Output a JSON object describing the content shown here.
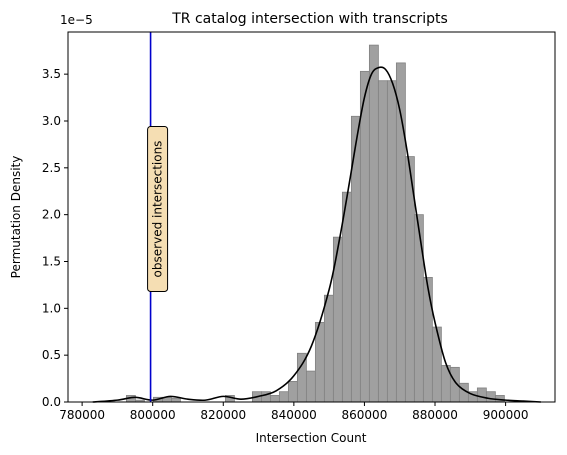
{
  "chart_data": {
    "type": "histogram",
    "title": "TR catalog intersection with transcripts",
    "xlabel": "Intersection Count",
    "ylabel": "Permutation Density",
    "y_offset_label": "1e−5",
    "xlim": [
      776000,
      914000
    ],
    "ylim": [
      0,
      3.95
    ],
    "x_ticks": [
      780000,
      800000,
      820000,
      840000,
      860000,
      880000,
      900000
    ],
    "x_tick_labels": [
      "780000",
      "800000",
      "820000",
      "840000",
      "860000",
      "880000",
      "900000"
    ],
    "y_ticks": [
      0.0,
      0.5,
      1.0,
      1.5,
      2.0,
      2.5,
      3.0,
      3.5
    ],
    "y_tick_labels": [
      "0.0",
      "0.5",
      "1.0",
      "1.5",
      "2.0",
      "2.5",
      "3.0",
      "3.5"
    ],
    "bin_width": 2550,
    "bins": [
      {
        "x0": 792550,
        "value": 0.07
      },
      {
        "x0": 795100,
        "value": 0.02
      },
      {
        "x0": 800200,
        "value": 0.05
      },
      {
        "x0": 802750,
        "value": 0.05
      },
      {
        "x0": 805300,
        "value": 0.04
      },
      {
        "x0": 820600,
        "value": 0.07
      },
      {
        "x0": 828250,
        "value": 0.11
      },
      {
        "x0": 830800,
        "value": 0.11
      },
      {
        "x0": 833350,
        "value": 0.07
      },
      {
        "x0": 835900,
        "value": 0.11
      },
      {
        "x0": 838450,
        "value": 0.22
      },
      {
        "x0": 841000,
        "value": 0.52
      },
      {
        "x0": 843550,
        "value": 0.33
      },
      {
        "x0": 846100,
        "value": 0.85
      },
      {
        "x0": 848650,
        "value": 1.14
      },
      {
        "x0": 851200,
        "value": 1.76
      },
      {
        "x0": 853750,
        "value": 2.24
      },
      {
        "x0": 856300,
        "value": 3.05
      },
      {
        "x0": 858850,
        "value": 3.53
      },
      {
        "x0": 861400,
        "value": 3.81
      },
      {
        "x0": 863950,
        "value": 3.43
      },
      {
        "x0": 866500,
        "value": 3.43
      },
      {
        "x0": 869050,
        "value": 3.62
      },
      {
        "x0": 871600,
        "value": 2.62
      },
      {
        "x0": 874150,
        "value": 2.0
      },
      {
        "x0": 876700,
        "value": 1.33
      },
      {
        "x0": 879250,
        "value": 0.8
      },
      {
        "x0": 881800,
        "value": 0.39
      },
      {
        "x0": 884350,
        "value": 0.37
      },
      {
        "x0": 886900,
        "value": 0.2
      },
      {
        "x0": 889450,
        "value": 0.11
      },
      {
        "x0": 892000,
        "value": 0.15
      },
      {
        "x0": 894550,
        "value": 0.11
      },
      {
        "x0": 897100,
        "value": 0.07
      }
    ],
    "kde": {
      "x": [
        783000,
        790000,
        795000,
        800000,
        805000,
        810000,
        815000,
        820000,
        825000,
        830000,
        835000,
        840000,
        845000,
        850000,
        853000,
        856000,
        858000,
        860000,
        862000,
        864000,
        866000,
        868000,
        870000,
        872000,
        874000,
        876000,
        878000,
        880000,
        883000,
        886000,
        890000,
        895000,
        900000,
        905000,
        910000
      ],
      "y": [
        0.0,
        0.02,
        0.05,
        0.02,
        0.06,
        0.03,
        0.02,
        0.06,
        0.03,
        0.06,
        0.12,
        0.28,
        0.6,
        1.2,
        1.75,
        2.4,
        2.85,
        3.25,
        3.5,
        3.57,
        3.55,
        3.4,
        3.12,
        2.7,
        2.2,
        1.7,
        1.22,
        0.85,
        0.42,
        0.2,
        0.09,
        0.04,
        0.02,
        0.01,
        0.0
      ]
    },
    "observed": {
      "x": 799400,
      "label": "observed intersections",
      "color": "#0000cc"
    },
    "colors": {
      "bar_fill": "#a0a0a0",
      "bar_edge": "#808080",
      "kde_line": "#000000",
      "annotation_box": "#f5deb3"
    },
    "grid": false
  }
}
